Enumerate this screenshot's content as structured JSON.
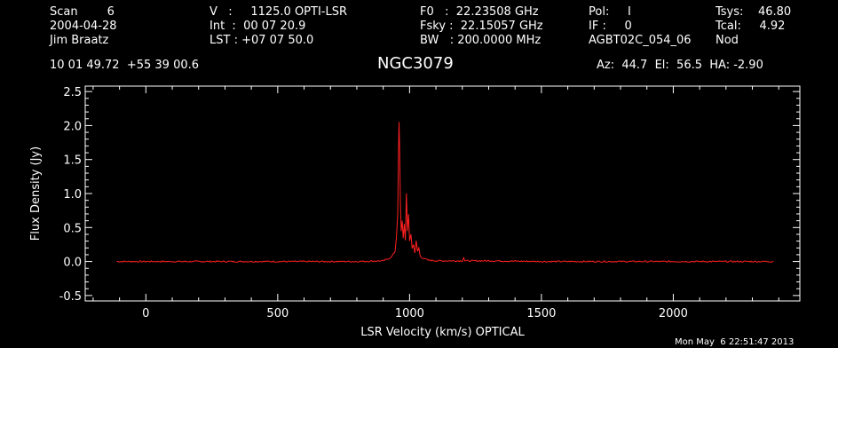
{
  "header": {
    "col1": [
      "Scan        6",
      "2004-04-28",
      "Jim Braatz"
    ],
    "col2": [
      "V   :     1125.0 OPTI-LSR",
      "Int  :  00 07 20.9",
      "LST : +07 07 50.0"
    ],
    "col3": [
      "F0   :  22.23508 GHz",
      "Fsky :  22.15057 GHz",
      "BW   : 200.0000 MHz"
    ],
    "col4": [
      "Pol:     I",
      "IF :     0",
      "AGBT02C_054_06"
    ],
    "col5": [
      "Tsys:    46.80",
      "Tcal:     4.92",
      "Nod"
    ]
  },
  "coords": "10 01 49.72  +55 39 00.6",
  "object": "NGC3079",
  "pointing": "Az:  44.7  El:  56.5  HA: -2.90",
  "timestamp": "Mon May  6 22:51:47 2013",
  "colors": {
    "background": "#000000",
    "foreground": "#ffffff",
    "trace": "#ff2020"
  },
  "chart_data": {
    "type": "line",
    "title": "NGC3079",
    "xlabel": "LSR Velocity (km/s) OPTICAL",
    "ylabel": "Flux Density (Jy)",
    "xlim": [
      -230,
      2480
    ],
    "ylim": [
      -0.58,
      2.58
    ],
    "x_ticks": [
      0,
      500,
      1000,
      1500,
      2000
    ],
    "y_ticks": [
      -0.5,
      0.0,
      0.5,
      1.0,
      1.5,
      2.0,
      2.5
    ],
    "x_tick_labels": [
      "0",
      "500",
      "1000",
      "1500",
      "2000"
    ],
    "y_tick_labels": [
      "-0.5",
      "0.0",
      "0.5",
      "1.0",
      "1.5",
      "2.0",
      "2.5"
    ],
    "series": [
      {
        "x": [
          -110,
          0,
          200,
          400,
          600,
          800,
          900,
          930,
          945,
          950,
          955,
          958,
          960,
          962,
          965,
          968,
          972,
          976,
          980,
          984,
          988,
          992,
          996,
          1000,
          1005,
          1010,
          1015,
          1020,
          1025,
          1030,
          1035,
          1040,
          1050,
          1070,
          1100,
          1150,
          1200,
          1205,
          1210,
          1300,
          1500,
          1700,
          1900,
          2100,
          2300,
          2380
        ],
        "y": [
          0.0,
          0.0,
          0.0,
          0.0,
          0.0,
          0.0,
          0.01,
          0.06,
          0.15,
          0.35,
          0.7,
          1.6,
          2.05,
          1.7,
          0.9,
          0.45,
          0.6,
          0.35,
          0.55,
          0.3,
          1.0,
          0.45,
          0.7,
          0.3,
          0.4,
          0.2,
          0.25,
          0.12,
          0.3,
          0.15,
          0.2,
          0.08,
          0.05,
          0.02,
          0.01,
          0.01,
          0.01,
          0.06,
          0.01,
          0.01,
          0.0,
          0.0,
          0.0,
          0.0,
          0.0,
          0.0
        ]
      }
    ]
  }
}
